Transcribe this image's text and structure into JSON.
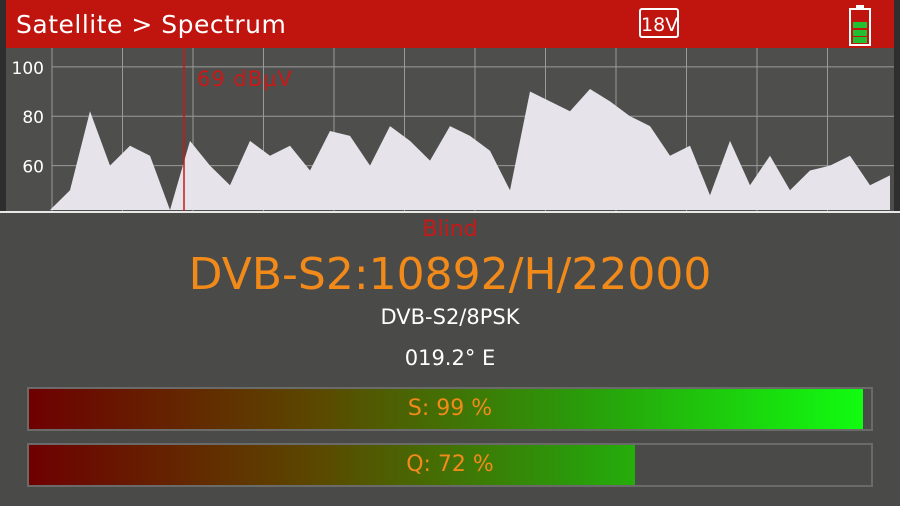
{
  "header": {
    "title": "Satellite > Spectrum",
    "lnb": "18V"
  },
  "spectrum": {
    "ylim": [
      42,
      106
    ],
    "yticks": [
      60,
      80,
      100
    ],
    "marker_label": "69 dBµV",
    "values": [
      42,
      42,
      42,
      50,
      82,
      60,
      68,
      64,
      42,
      70,
      60,
      52,
      70,
      64,
      68,
      58,
      74,
      72,
      60,
      76,
      70,
      62,
      76,
      72,
      66,
      50,
      90,
      86,
      82,
      91,
      86,
      80,
      76,
      64,
      68,
      48,
      70,
      52,
      64,
      50,
      58,
      60,
      64,
      52,
      56
    ]
  },
  "panel": {
    "mode": "Blind",
    "channel": "DVB-S2:10892/H/22000",
    "modulation": "DVB-S2/8PSK",
    "position": "019.2° E",
    "bars": [
      {
        "label": "S: 99 %",
        "value": 99
      },
      {
        "label": "Q: 72 %",
        "value": 72
      }
    ]
  }
}
